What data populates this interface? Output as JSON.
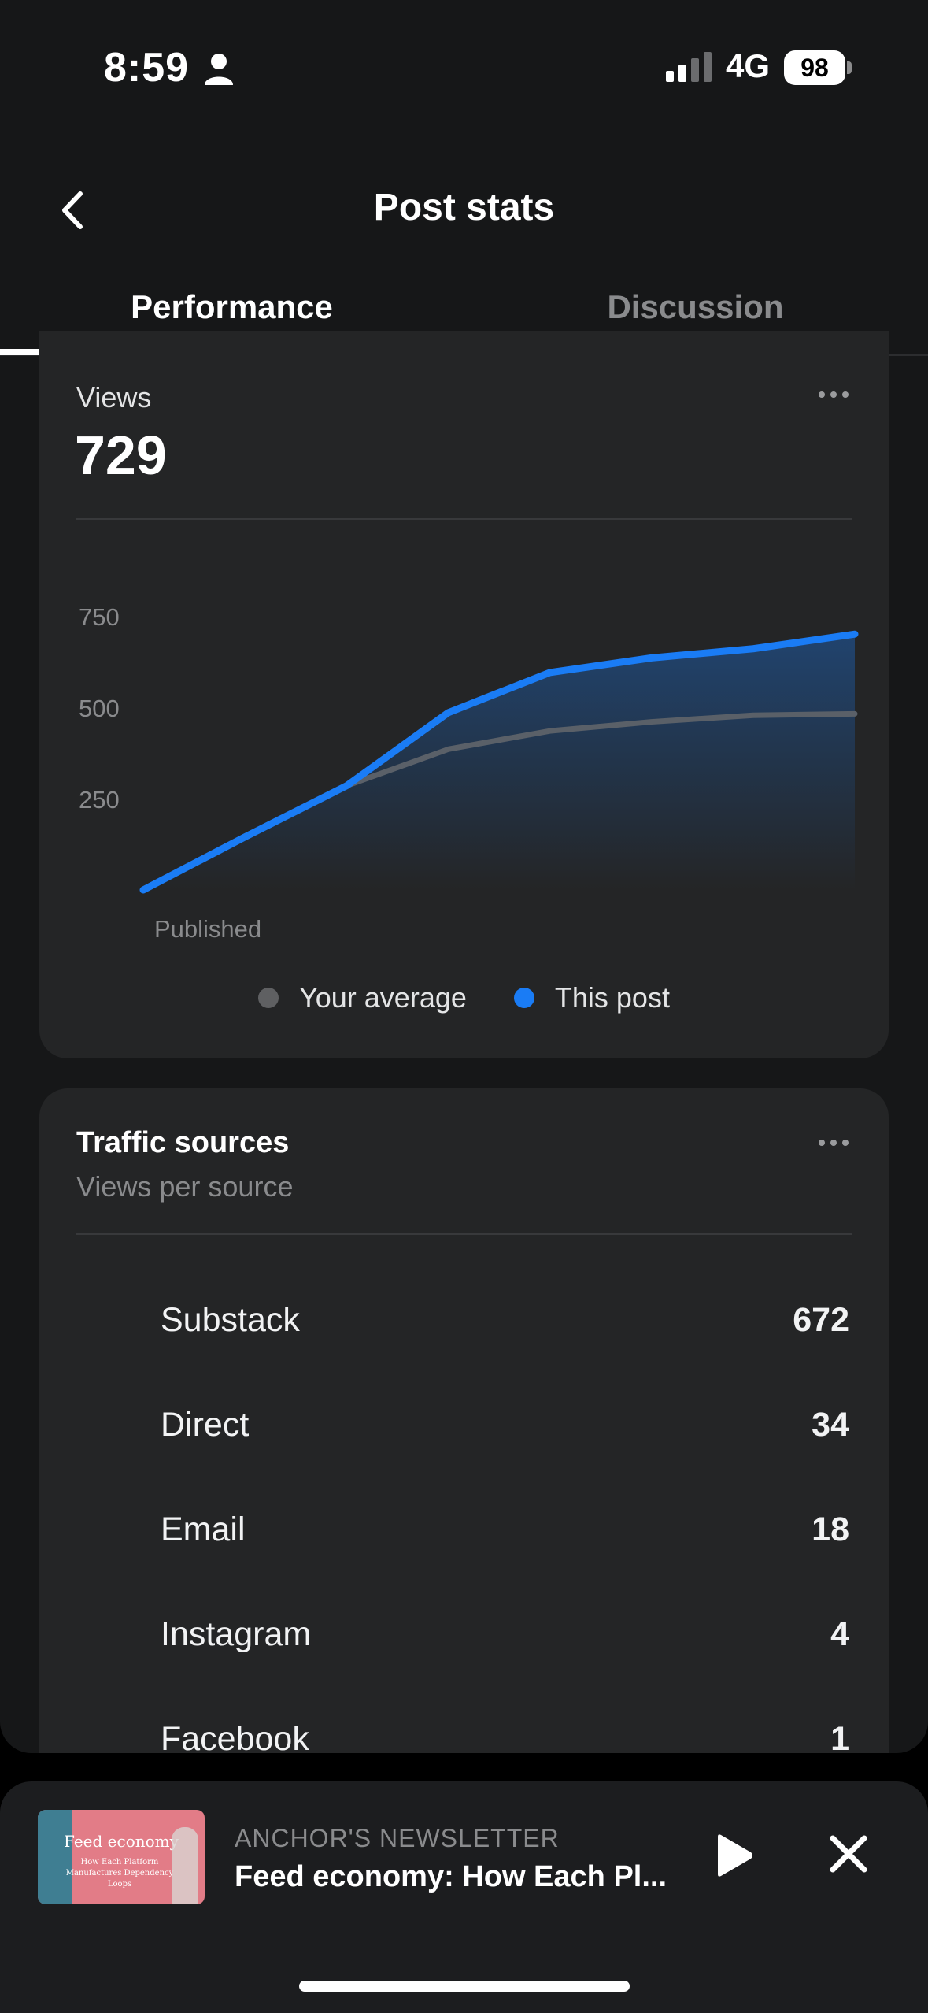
{
  "status_bar": {
    "time": "8:59",
    "network": "4G",
    "battery": "98"
  },
  "header": {
    "title": "Post stats"
  },
  "tabs": [
    {
      "label": "Performance",
      "active": true
    },
    {
      "label": "Discussion",
      "active": false
    }
  ],
  "views_card": {
    "label": "Views",
    "value": "729"
  },
  "chart_data": {
    "type": "line",
    "x": [
      0,
      1,
      2,
      3,
      4,
      5,
      6,
      7
    ],
    "xlabel_start": "Published",
    "yticks": [
      "750",
      "500",
      "250"
    ],
    "ylim": [
      0,
      800
    ],
    "series": [
      {
        "name": "Your average",
        "color": "#5a6068",
        "values": [
          0,
          145,
          285,
          385,
          435,
          460,
          478,
          482
        ]
      },
      {
        "name": "This post",
        "color": "#1a7cf5",
        "values": [
          0,
          145,
          285,
          485,
          595,
          635,
          660,
          700
        ]
      }
    ],
    "legend": [
      "Your average",
      "This post"
    ],
    "grid": false
  },
  "traffic_card": {
    "title": "Traffic sources",
    "subtitle": "Views per source",
    "sources": [
      {
        "name": "Substack",
        "value": "672"
      },
      {
        "name": "Direct",
        "value": "34"
      },
      {
        "name": "Email",
        "value": "18"
      },
      {
        "name": "Instagram",
        "value": "4"
      },
      {
        "name": "Facebook",
        "value": "1"
      }
    ]
  },
  "player": {
    "kicker": "ANCHOR'S NEWSLETTER",
    "title": "Feed economy: How Each Pl...",
    "thumb_title": "Feed economy",
    "thumb_sub": "How Each Platform Manufactures Dependency Loops"
  },
  "colors": {
    "accent": "#1a7cf5",
    "average": "#5a6068",
    "card": "#242526",
    "background": "#161718"
  }
}
